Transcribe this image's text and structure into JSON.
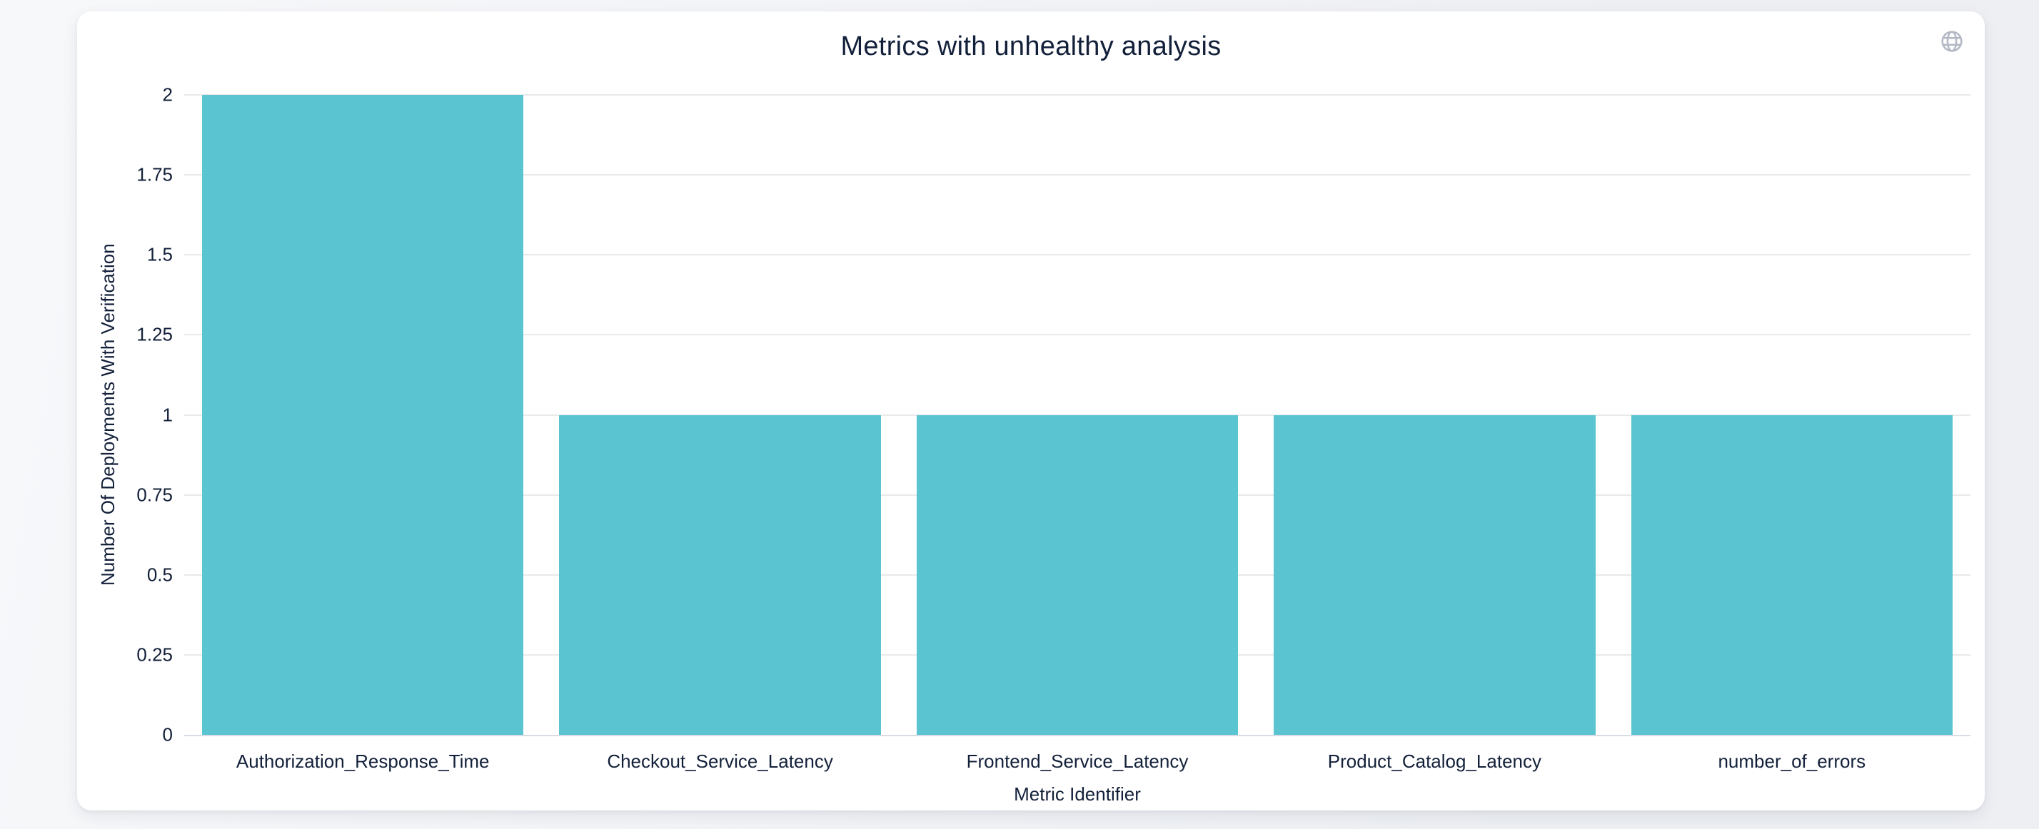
{
  "colors": {
    "page_bg_start": "#f7f8fa",
    "page_bg_end": "#edeff3",
    "card_bg": "#ffffff",
    "icon": "#b3b9c4"
  },
  "toolbar": {
    "globe_icon": "globe-icon"
  },
  "chart_data": {
    "type": "bar",
    "title": "Metrics with unhealthy analysis",
    "categories": [
      "Authorization_Response_Time",
      "Checkout_Service_Latency",
      "Frontend_Service_Latency",
      "Product_Catalog_Latency",
      "number_of_errors"
    ],
    "values": [
      2,
      1,
      1,
      1,
      1
    ],
    "xlabel": "Metric Identifier",
    "ylabel": "Number Of Deployments With Verification",
    "ylim": [
      0,
      2
    ],
    "yticks": [
      0,
      0.25,
      0.5,
      0.75,
      1,
      1.25,
      1.5,
      1.75,
      2
    ],
    "grid": true,
    "legend_position": "none",
    "bar_color": "#5ac4d1",
    "bar_width_fraction": 0.9,
    "text_color": "#13203a",
    "gridline_color": "#e9e9e9",
    "axis_line_color": "#d9dbe5"
  }
}
